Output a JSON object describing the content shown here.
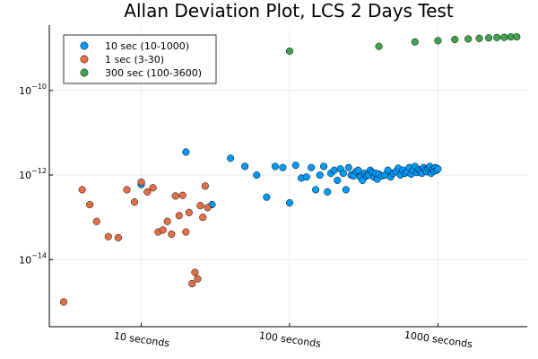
{
  "chart_data": {
    "type": "scatter",
    "title": "Allan Deviation Plot, LCS 2 Days Test",
    "xlabel": "",
    "ylabel": "",
    "x_scale": "log",
    "y_scale": "log",
    "xlim": [
      2.4,
      4000
    ],
    "ylim": [
      2.6e-16,
      3.5e-09
    ],
    "x_ticks": [
      {
        "value": 10,
        "label": "10 seconds"
      },
      {
        "value": 100,
        "label": "100 seconds"
      },
      {
        "value": 1000,
        "label": "1000 seconds"
      }
    ],
    "y_ticks": [
      {
        "value": 1e-14,
        "base": "10",
        "exp": "−14"
      },
      {
        "value": 1e-12,
        "base": "10",
        "exp": "−12"
      },
      {
        "value": 1e-10,
        "base": "10",
        "exp": "−10"
      }
    ],
    "grid": true,
    "legend_position": "top-left",
    "series": [
      {
        "name": "10 sec (10-1000)",
        "color": "#009AFA",
        "points": [
          [
            10,
            6e-13
          ],
          [
            20,
            3.5e-12
          ],
          [
            30,
            2e-13
          ],
          [
            40,
            2.5e-12
          ],
          [
            50,
            1.6e-12
          ],
          [
            60,
            1e-12
          ],
          [
            70,
            3e-13
          ],
          [
            80,
            1.6e-12
          ],
          [
            90,
            1.5e-12
          ],
          [
            100,
            2.2e-13
          ],
          [
            110,
            1.7e-12
          ],
          [
            120,
            8.5e-13
          ],
          [
            130,
            9e-13
          ],
          [
            140,
            1.5e-12
          ],
          [
            150,
            4.5e-13
          ],
          [
            160,
            1e-12
          ],
          [
            170,
            1.6e-12
          ],
          [
            180,
            4e-13
          ],
          [
            190,
            1.1e-12
          ],
          [
            200,
            1.3e-12
          ],
          [
            210,
            7.5e-13
          ],
          [
            220,
            1.4e-12
          ],
          [
            230,
            1.1e-12
          ],
          [
            240,
            4.5e-13
          ],
          [
            250,
            1.5e-12
          ],
          [
            260,
            1e-12
          ],
          [
            270,
            9.5e-13
          ],
          [
            280,
            1.2e-12
          ],
          [
            290,
            1.3e-12
          ],
          [
            300,
            9e-13
          ],
          [
            310,
            7.5e-13
          ],
          [
            320,
            1.1e-12
          ],
          [
            330,
            9.5e-13
          ],
          [
            340,
            1e-12
          ],
          [
            350,
            1.3e-12
          ],
          [
            360,
            1.15e-12
          ],
          [
            370,
            9e-13
          ],
          [
            380,
            1.1e-12
          ],
          [
            390,
            8e-13
          ],
          [
            400,
            1.05e-12
          ],
          [
            420,
            9.5e-13
          ],
          [
            440,
            1e-12
          ],
          [
            460,
            1.3e-12
          ],
          [
            480,
            9e-13
          ],
          [
            500,
            1.1e-12
          ],
          [
            520,
            1.2e-12
          ],
          [
            540,
            1.45e-12
          ],
          [
            560,
            1e-12
          ],
          [
            580,
            1.3e-12
          ],
          [
            600,
            1.1e-12
          ],
          [
            620,
            1.2e-12
          ],
          [
            640,
            1.5e-12
          ],
          [
            660,
            1.05e-12
          ],
          [
            680,
            1.3e-12
          ],
          [
            700,
            1.6e-12
          ],
          [
            720,
            1.15e-12
          ],
          [
            740,
            1.35e-12
          ],
          [
            760,
            1.25e-12
          ],
          [
            780,
            1.1e-12
          ],
          [
            800,
            1.5e-12
          ],
          [
            820,
            1.3e-12
          ],
          [
            840,
            1.2e-12
          ],
          [
            860,
            1.4e-12
          ],
          [
            880,
            1.6e-12
          ],
          [
            900,
            1.1e-12
          ],
          [
            920,
            1.35e-12
          ],
          [
            940,
            1.25e-12
          ],
          [
            960,
            1.5e-12
          ],
          [
            980,
            1.3e-12
          ],
          [
            1000,
            1.4e-12
          ]
        ]
      },
      {
        "name": "1 sec (3-30)",
        "color": "#E26F46",
        "points": [
          [
            3,
            1e-15
          ],
          [
            4,
            4.5e-13
          ],
          [
            4.5,
            2e-13
          ],
          [
            5,
            8e-14
          ],
          [
            6,
            3.5e-14
          ],
          [
            7,
            3.3e-14
          ],
          [
            8,
            4.5e-13
          ],
          [
            9,
            2.3e-13
          ],
          [
            10,
            6.8e-13
          ],
          [
            11,
            4e-13
          ],
          [
            12,
            5e-13
          ],
          [
            13,
            4.5e-14
          ],
          [
            14,
            5e-14
          ],
          [
            15,
            8e-14
          ],
          [
            16,
            4e-14
          ],
          [
            17,
            3.2e-13
          ],
          [
            18,
            1.1e-13
          ],
          [
            19,
            3.3e-13
          ],
          [
            20,
            4.5e-14
          ],
          [
            21,
            1.3e-13
          ],
          [
            22,
            2.7e-15
          ],
          [
            23,
            5e-15
          ],
          [
            24,
            3.5e-15
          ],
          [
            25,
            1.9e-13
          ],
          [
            26,
            1e-13
          ],
          [
            27,
            5.5e-13
          ],
          [
            28,
            1.7e-13
          ]
        ]
      },
      {
        "name": "300 sec (100-3600)",
        "color": "#3EA44E",
        "points": [
          [
            100,
            8.5e-10
          ],
          [
            400,
            1.1e-09
          ],
          [
            700,
            1.4e-09
          ],
          [
            1000,
            1.5e-09
          ],
          [
            1300,
            1.6e-09
          ],
          [
            1600,
            1.65e-09
          ],
          [
            1900,
            1.7e-09
          ],
          [
            2200,
            1.75e-09
          ],
          [
            2500,
            1.78e-09
          ],
          [
            2800,
            1.8e-09
          ],
          [
            3100,
            1.85e-09
          ],
          [
            3400,
            1.85e-09
          ]
        ]
      }
    ]
  }
}
